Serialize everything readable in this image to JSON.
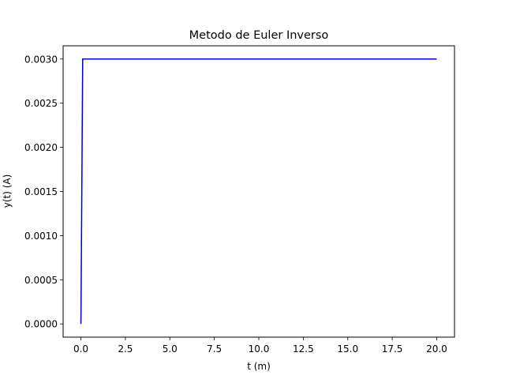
{
  "chart_data": {
    "type": "line",
    "title": "Metodo de Euler Inverso",
    "xlabel": "t (m)",
    "ylabel": "y(t) (A)",
    "xlim": [
      -1.0,
      21.0
    ],
    "ylim": [
      -0.00015,
      0.00315
    ],
    "x_ticks": [
      0.0,
      2.5,
      5.0,
      7.5,
      10.0,
      12.5,
      15.0,
      17.5,
      20.0
    ],
    "x_tick_labels": [
      "0.0",
      "2.5",
      "5.0",
      "7.5",
      "10.0",
      "12.5",
      "15.0",
      "17.5",
      "20.0"
    ],
    "y_ticks": [
      0.0,
      0.0005,
      0.001,
      0.0015,
      0.002,
      0.0025,
      0.003
    ],
    "y_tick_labels": [
      "0.0000",
      "0.0005",
      "0.0010",
      "0.0015",
      "0.0020",
      "0.0025",
      "0.0030"
    ],
    "grid": false,
    "series": [
      {
        "color": "#0000cc",
        "x": [
          0.0,
          0.1,
          20.0
        ],
        "y": [
          0.0,
          0.003,
          0.003
        ]
      }
    ]
  }
}
